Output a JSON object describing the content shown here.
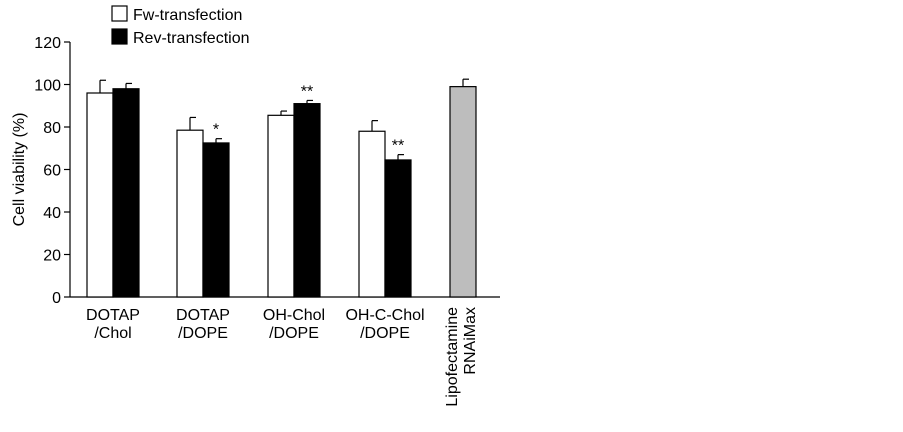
{
  "chart_data": {
    "type": "bar",
    "title": "",
    "xlabel": "",
    "ylabel": "Cell viability (%)",
    "ylim": [
      0,
      120
    ],
    "yticks": [
      0,
      20,
      40,
      60,
      80,
      100,
      120
    ],
    "grid": false,
    "legend_position": "top-left",
    "categories": [
      {
        "lines": [
          "DOTAP",
          "/Chol"
        ]
      },
      {
        "lines": [
          "DOTAP",
          "/DOPE"
        ]
      },
      {
        "lines": [
          "OH-Chol",
          "/DOPE"
        ]
      },
      {
        "lines": [
          "OH-C-Chol",
          "/DOPE"
        ]
      },
      {
        "lines": [
          "Lipofectamine",
          "RNAiMax"
        ],
        "rotated": true
      }
    ],
    "series": [
      {
        "name": "Fw-transfection",
        "color": "#ffffff",
        "values": [
          96,
          78.5,
          85.5,
          78,
          null
        ],
        "errors": [
          6,
          6,
          2,
          5,
          null
        ],
        "significance": [
          "",
          "",
          "",
          "",
          ""
        ]
      },
      {
        "name": "Rev-transfection",
        "color": "#000000",
        "values": [
          98,
          72.5,
          91,
          64.5,
          null
        ],
        "errors": [
          2.5,
          2,
          1.5,
          2.5,
          null
        ],
        "significance": [
          "",
          "*",
          "**",
          "**",
          ""
        ]
      },
      {
        "name": "",
        "color": "#bdbdbd",
        "values": [
          null,
          null,
          null,
          null,
          99
        ],
        "errors": [
          null,
          null,
          null,
          null,
          3.5
        ],
        "significance": [
          "",
          "",
          "",
          "",
          ""
        ]
      }
    ]
  }
}
